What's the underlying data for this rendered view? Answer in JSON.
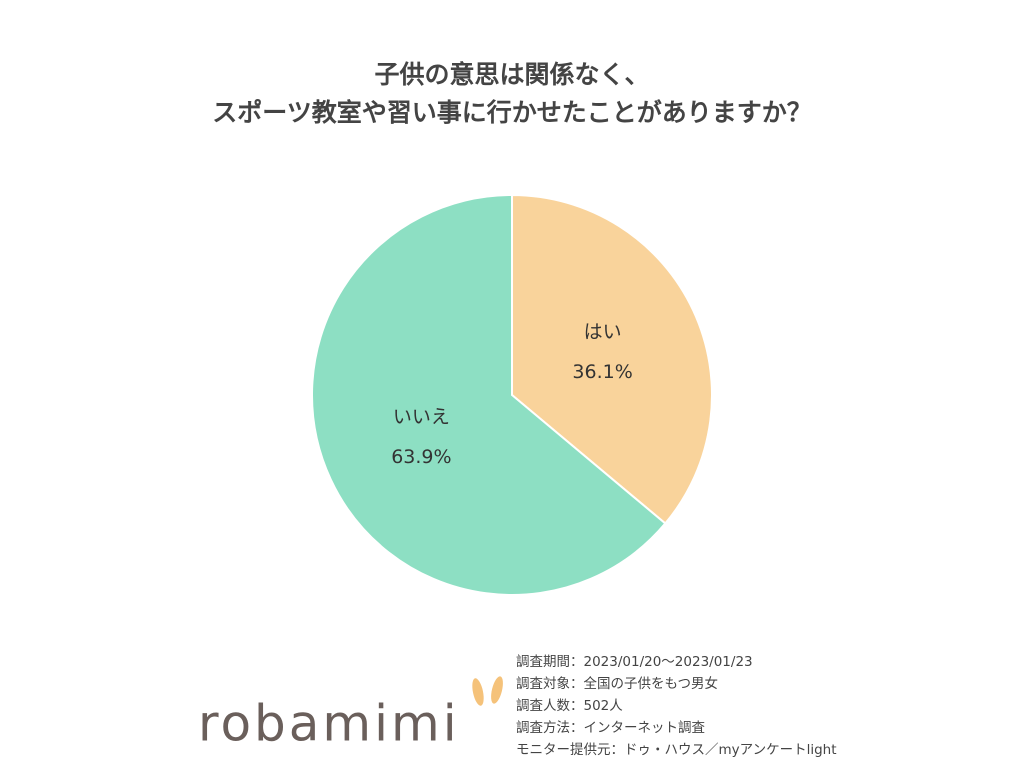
{
  "chart_data": {
    "type": "pie",
    "title": [
      "子供の意思は関係なく、",
      "スポーツ教室や習い事に行かせたことがありますか？"
    ],
    "categories": [
      "はい",
      "いいえ"
    ],
    "values": [
      36.1,
      63.9
    ],
    "value_labels": [
      "36.1%",
      "63.9%"
    ],
    "colors": [
      "#f9d39b",
      "#8ddfc3"
    ],
    "notes": [
      "調査期間：2023/01/20～2023/01/23",
      "調査対象：全国の子供をもつ男女",
      "調査人数：502人",
      "調査方法：インターネット調査",
      "モニター提供元：ドゥ・ハウス／myアンケートlight"
    ],
    "logo": "robamimi"
  }
}
